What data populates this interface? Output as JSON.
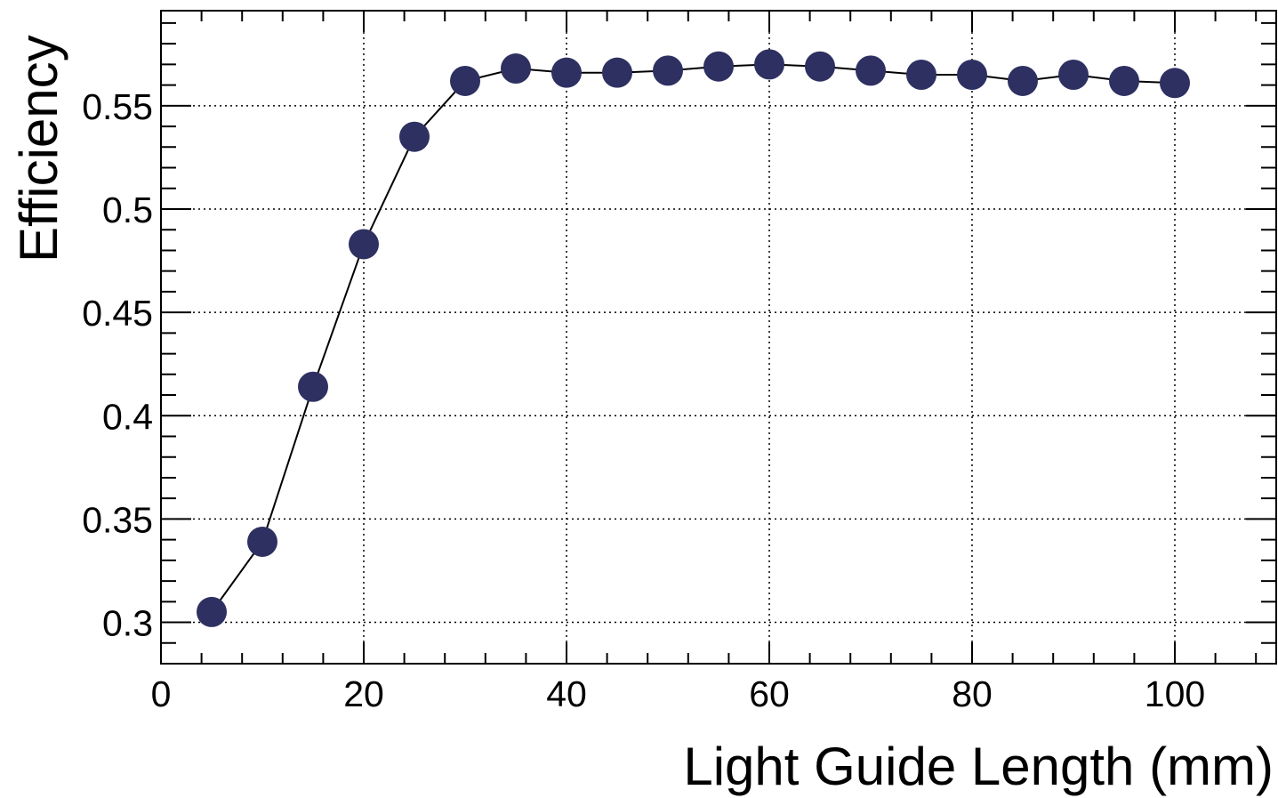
{
  "chart_data": {
    "type": "scatter",
    "title": "",
    "xlabel": "Light Guide Length (mm)",
    "ylabel": "Efficiency",
    "xlim": [
      0,
      110
    ],
    "ylim": [
      0.28,
      0.596
    ],
    "x_ticks": [
      0,
      20,
      40,
      60,
      80,
      100
    ],
    "x_tick_labels": [
      "0",
      "20",
      "40",
      "60",
      "80",
      "100"
    ],
    "y_ticks": [
      0.3,
      0.35,
      0.4,
      0.45,
      0.5,
      0.55
    ],
    "y_tick_labels": [
      "0.3",
      "0.35",
      "0.4",
      "0.45",
      "0.5",
      "0.55"
    ],
    "grid": true,
    "connected_line": true,
    "marker": "filled-circle",
    "marker_color": "#2e3061",
    "line_color": "#000000",
    "series": [
      {
        "x": [
          5,
          10,
          15,
          20,
          25,
          30,
          35,
          40,
          45,
          50,
          55,
          60,
          65,
          70,
          75,
          80,
          85,
          90,
          95,
          100
        ],
        "y": [
          0.305,
          0.339,
          0.414,
          0.483,
          0.535,
          0.562,
          0.568,
          0.566,
          0.566,
          0.567,
          0.569,
          0.57,
          0.569,
          0.567,
          0.565,
          0.565,
          0.562,
          0.565,
          0.562,
          0.561
        ]
      }
    ]
  }
}
